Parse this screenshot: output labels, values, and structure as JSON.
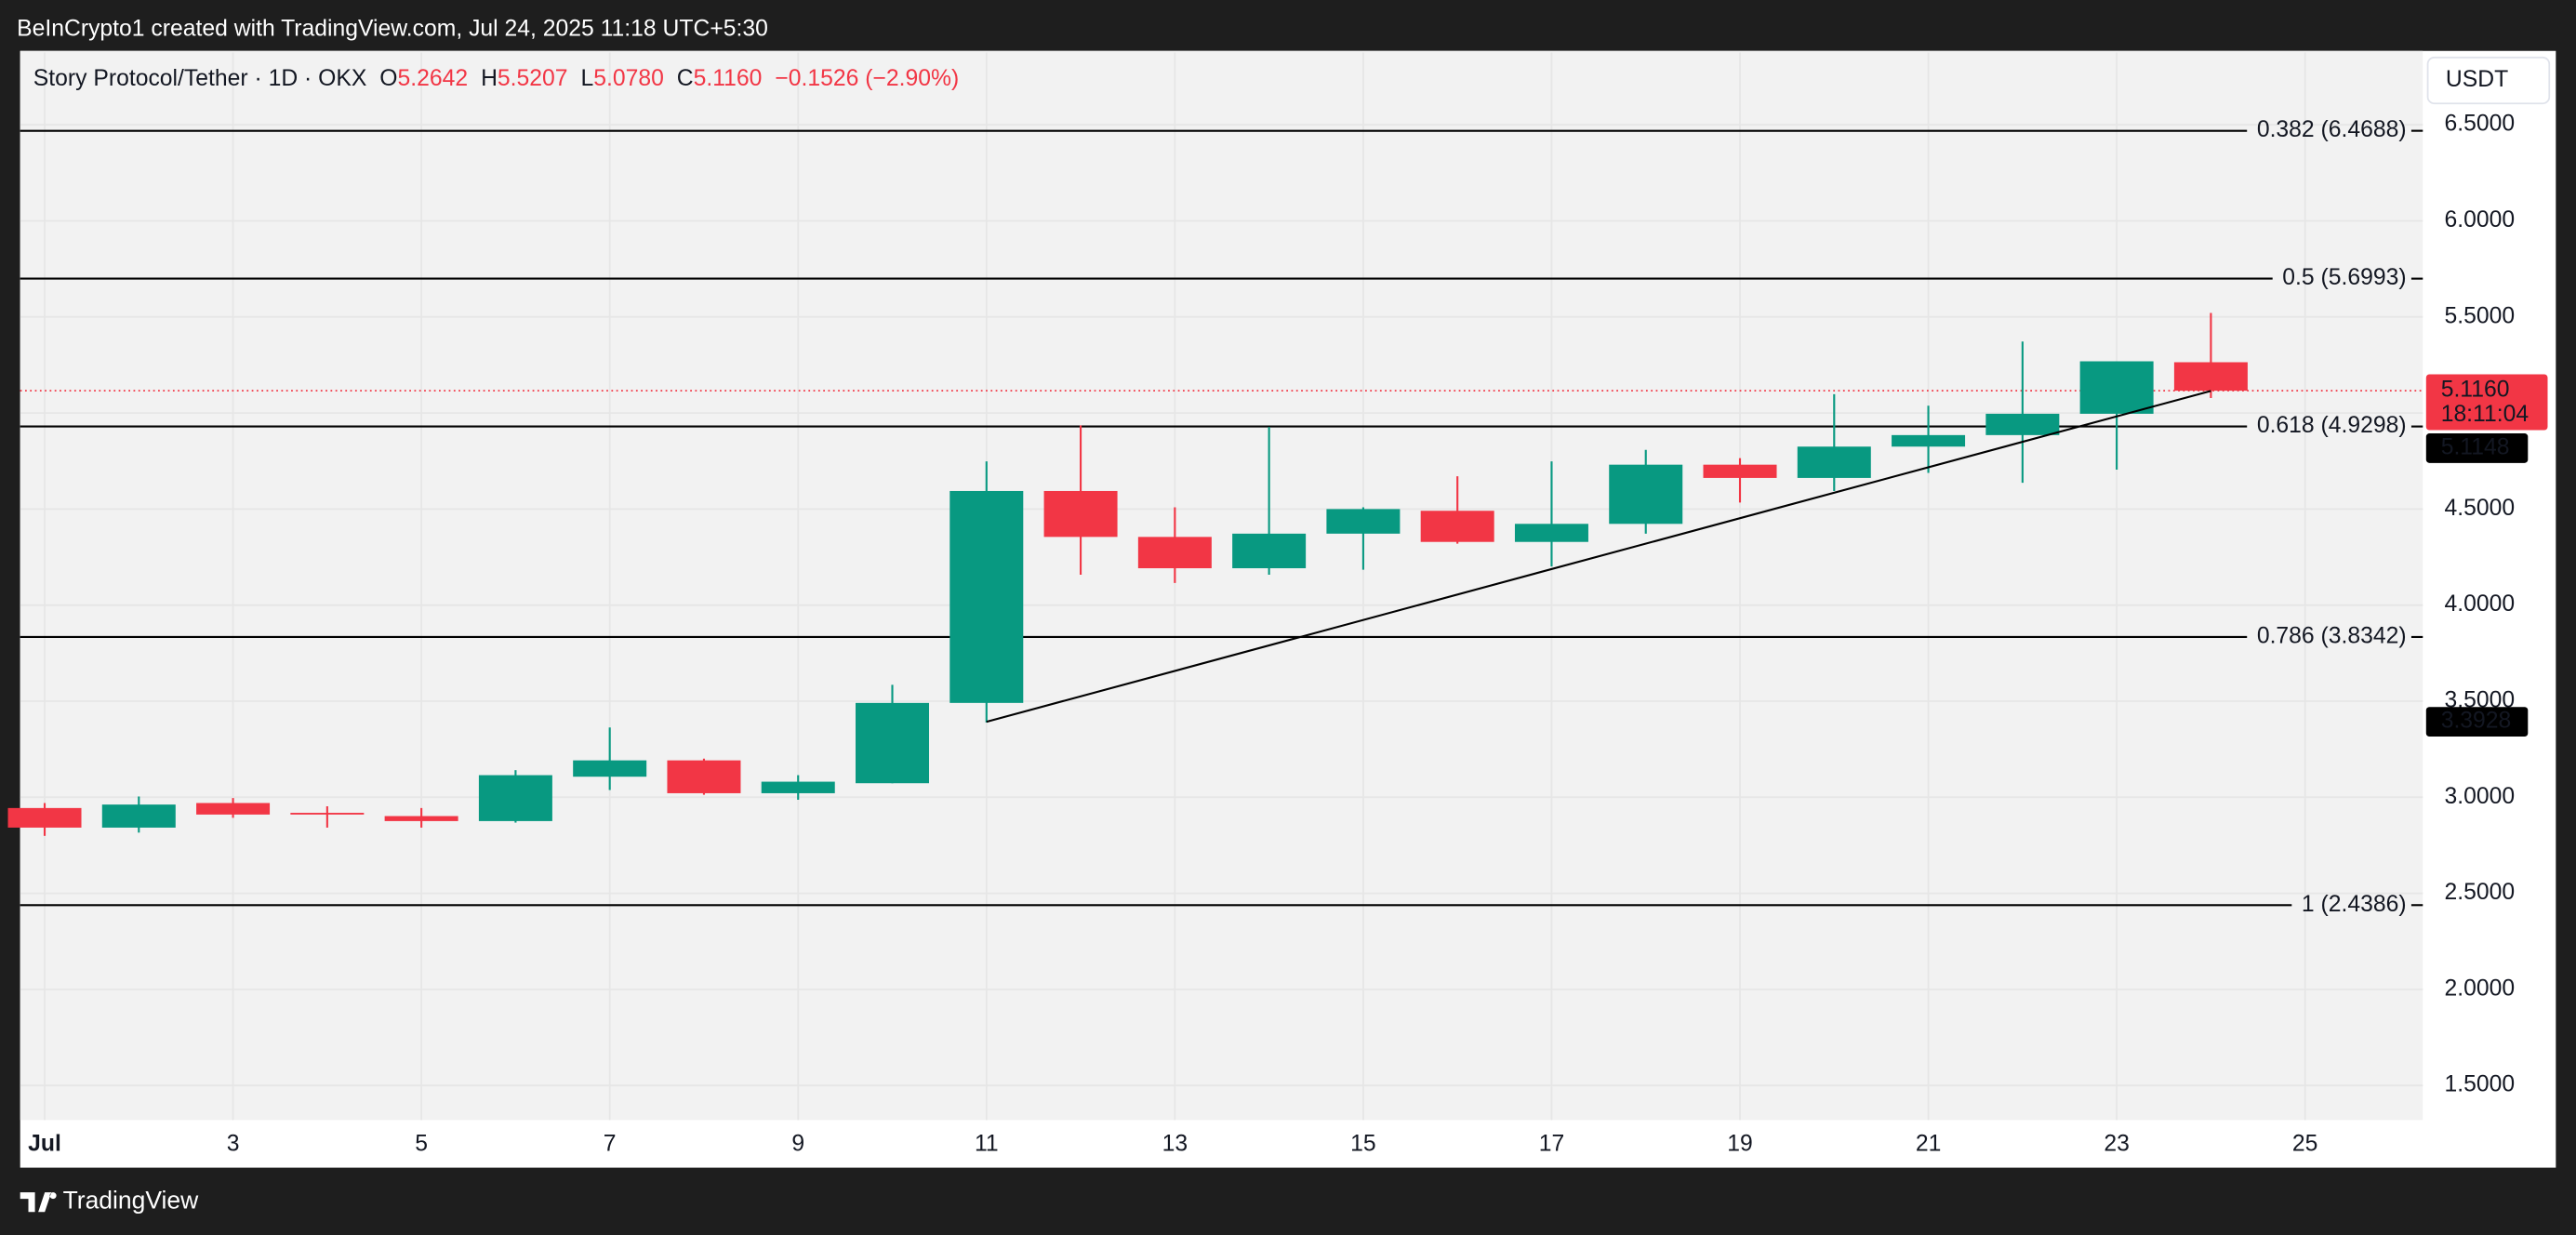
{
  "header": {
    "text": "BeInCrypto1 created with TradingView.com, Jul 24, 2025 11:18 UTC+5:30"
  },
  "footer": {
    "brand": "TradingView"
  },
  "chart_data": {
    "type": "candlestick",
    "symbol": "Story Protocol/Tether · 1D · OKX",
    "currency": "USDT",
    "legend": [
      {
        "key": "O",
        "price": {
          "value": 5.2642,
          "label": "5.2642"
        }
      },
      {
        "key": "H",
        "price": {
          "value": 5.5207,
          "label": "5.5207"
        }
      },
      {
        "key": "L",
        "price": {
          "value": 5.078,
          "label": "5.0780"
        }
      },
      {
        "key": "C",
        "price": {
          "value": 5.116,
          "label": "5.1160"
        }
      }
    ],
    "change": {
      "value": -0.1526,
      "label": "−0.1526 (−2.90%)"
    },
    "x": [
      1,
      2,
      3,
      4,
      5,
      6,
      7,
      8,
      9,
      10,
      11,
      12,
      13,
      14,
      15,
      16,
      17,
      18,
      19,
      20,
      21,
      22,
      23,
      24
    ],
    "open": [
      2.944,
      2.842,
      2.97,
      2.919,
      2.902,
      2.876,
      3.107,
      3.192,
      3.021,
      3.073,
      3.491,
      4.594,
      4.355,
      4.192,
      4.372,
      4.491,
      4.329,
      4.423,
      4.731,
      4.662,
      4.825,
      4.885,
      4.996,
      5.2642
    ],
    "high": [
      2.97,
      3.004,
      2.996,
      2.953,
      2.944,
      3.141,
      3.363,
      3.201,
      3.115,
      3.585,
      4.748,
      4.936,
      4.509,
      4.927,
      4.509,
      4.671,
      4.748,
      4.808,
      4.765,
      5.098,
      5.038,
      5.372,
      5.269,
      5.5207
    ],
    "low": [
      2.799,
      2.816,
      2.893,
      2.842,
      2.842,
      2.868,
      3.038,
      3.013,
      2.987,
      3.073,
      3.389,
      4.158,
      4.115,
      4.158,
      4.184,
      4.32,
      4.201,
      4.372,
      4.534,
      4.594,
      4.688,
      4.637,
      4.705,
      5.078
    ],
    "close": [
      2.842,
      2.962,
      2.91,
      2.91,
      2.876,
      3.115,
      3.192,
      3.021,
      3.081,
      3.491,
      4.594,
      4.355,
      4.192,
      4.372,
      4.5,
      4.329,
      4.423,
      4.731,
      4.662,
      4.825,
      4.885,
      4.996,
      5.269,
      5.116
    ],
    "up_color": "#089981",
    "down_color": "#f23645",
    "xlim": [
      0.74,
      26.25
    ],
    "xticks": [
      {
        "value": 1,
        "label": "Jul"
      },
      3,
      5,
      7,
      9,
      11,
      13,
      15,
      17,
      19,
      21,
      23,
      25
    ],
    "ylim": [
      1.32,
      6.876
    ],
    "yticks": [
      {
        "value": 1.5,
        "label": "1.5000"
      },
      {
        "value": 2,
        "label": "2.0000"
      },
      {
        "value": 2.5,
        "label": "2.5000"
      },
      {
        "value": 3,
        "label": "3.0000"
      },
      {
        "value": 3.5,
        "label": "3.5000"
      },
      {
        "value": 4,
        "label": "4.0000"
      },
      {
        "value": 4.5,
        "label": "4.5000"
      },
      {
        "value": 5,
        "label": "5.0000"
      },
      {
        "value": 5.5,
        "label": "5.5000"
      },
      {
        "value": 6,
        "label": "6.0000"
      },
      {
        "value": 6.5,
        "label": "6.5000"
      }
    ],
    "grid": true,
    "fib_levels": [
      {
        "value": 6.4688,
        "label": "0.382 (6.4688)"
      },
      {
        "value": 5.6993,
        "label": "0.5 (5.6993)"
      },
      {
        "value": 4.9298,
        "label": "0.618 (4.9298)"
      },
      {
        "value": 3.8342,
        "label": "0.786 (3.8342)"
      },
      {
        "value": 2.4386,
        "label": "1 (2.4386)"
      }
    ],
    "trendline": {
      "x": [
        11,
        24
      ],
      "y": [
        3.3928,
        5.1148
      ],
      "color": "#000000"
    },
    "last_price": {
      "value": 5.116,
      "label": "5.1160"
    },
    "countdown": "18:11:04"
  }
}
